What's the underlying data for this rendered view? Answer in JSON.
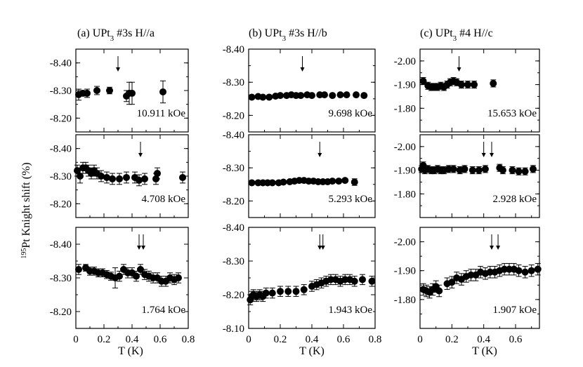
{
  "figure": {
    "ylabel_sup": "195",
    "ylabel_main": "Pt Knight shift (%)",
    "xlabel": "T (K)",
    "columns": [
      {
        "label_pre": "(a) UPt",
        "label_sub": "3",
        "label_post": " #3s H//a"
      },
      {
        "label_pre": "(b) UPt",
        "label_sub": "3",
        "label_post": " #3s H//b"
      },
      {
        "label_pre": "(c) UPt",
        "label_sub": "3",
        "label_post": " #4 H//c"
      }
    ]
  },
  "chart_data": [
    {
      "type": "scatter",
      "column": 0,
      "row": 0,
      "field_label": "10.911 kOe",
      "xlim": [
        0,
        0.8
      ],
      "ylim": [
        -8.15,
        -8.45
      ],
      "yticks": [
        "-8.40",
        "-8.30",
        "-8.20"
      ],
      "xticks": [],
      "points": [
        [
          0.02,
          -8.285,
          0.02
        ],
        [
          0.05,
          -8.29,
          0.01
        ],
        [
          0.08,
          -8.29,
          0.015
        ],
        [
          0.15,
          -8.3,
          0.015
        ],
        [
          0.24,
          -8.3,
          0.012
        ],
        [
          0.36,
          -8.28,
          0.02
        ],
        [
          0.38,
          -8.29,
          0.04
        ],
        [
          0.4,
          -8.29,
          0.04
        ],
        [
          0.62,
          -8.295,
          0.04
        ]
      ],
      "arrows": [
        0.3
      ]
    },
    {
      "type": "scatter",
      "column": 1,
      "row": 0,
      "field_label": "9.698 kOe",
      "xlim": [
        0,
        0.8
      ],
      "ylim": [
        -8.15,
        -8.4
      ],
      "yticks": [
        "-8.40",
        "-8.30",
        "-8.20"
      ],
      "xticks": [],
      "points": [
        [
          0.02,
          -8.255,
          0
        ],
        [
          0.06,
          -8.257,
          0
        ],
        [
          0.09,
          -8.255,
          0
        ],
        [
          0.13,
          -8.255,
          0
        ],
        [
          0.17,
          -8.258,
          0
        ],
        [
          0.2,
          -8.26,
          0
        ],
        [
          0.24,
          -8.26,
          0
        ],
        [
          0.27,
          -8.262,
          0
        ],
        [
          0.3,
          -8.26,
          0
        ],
        [
          0.33,
          -8.26,
          0
        ],
        [
          0.37,
          -8.262,
          0
        ],
        [
          0.4,
          -8.26,
          0
        ],
        [
          0.45,
          -8.262,
          0
        ],
        [
          0.48,
          -8.262,
          0
        ],
        [
          0.53,
          -8.26,
          0
        ],
        [
          0.58,
          -8.262,
          0
        ],
        [
          0.62,
          -8.262,
          0
        ],
        [
          0.68,
          -8.262,
          0
        ],
        [
          0.73,
          -8.26,
          0
        ]
      ],
      "arrows": [
        0.34
      ]
    },
    {
      "type": "scatter",
      "column": 2,
      "row": 0,
      "field_label": "15.653 kOe",
      "xlim": [
        0,
        0.75
      ],
      "ylim": [
        -1.7,
        -2.05
      ],
      "yticks": [
        "-2.00",
        "-1.90",
        "-1.80"
      ],
      "xticks": [],
      "points": [
        [
          0.02,
          -1.915,
          0.015
        ],
        [
          0.05,
          -1.895,
          0.015
        ],
        [
          0.07,
          -1.89,
          0.015
        ],
        [
          0.09,
          -1.89,
          0.015
        ],
        [
          0.11,
          -1.89,
          0.015
        ],
        [
          0.13,
          -1.895,
          0.015
        ],
        [
          0.15,
          -1.89,
          0.015
        ],
        [
          0.17,
          -1.9,
          0.015
        ],
        [
          0.19,
          -1.91,
          0.015
        ],
        [
          0.21,
          -1.915,
          0.015
        ],
        [
          0.23,
          -1.91,
          0.015
        ],
        [
          0.26,
          -1.9,
          0.015
        ],
        [
          0.3,
          -1.9,
          0.015
        ],
        [
          0.34,
          -1.9,
          0.015
        ],
        [
          0.46,
          -1.905,
          0.015
        ]
      ],
      "arrows": [
        0.245
      ]
    },
    {
      "type": "scatter",
      "column": 0,
      "row": 1,
      "field_label": "4.708 kOe",
      "xlim": [
        0,
        0.8
      ],
      "ylim": [
        -8.15,
        -8.45
      ],
      "yticks": [
        "-8.40",
        "-8.30",
        "-8.20"
      ],
      "xticks": [],
      "points": [
        [
          0.01,
          -8.32,
          0.02
        ],
        [
          0.03,
          -8.3,
          0.025
        ],
        [
          0.05,
          -8.33,
          0.02
        ],
        [
          0.07,
          -8.33,
          0.02
        ],
        [
          0.09,
          -8.32,
          0.02
        ],
        [
          0.11,
          -8.31,
          0.02
        ],
        [
          0.13,
          -8.32,
          0.02
        ],
        [
          0.15,
          -8.31,
          0.02
        ],
        [
          0.18,
          -8.3,
          0.02
        ],
        [
          0.22,
          -8.295,
          0.02
        ],
        [
          0.26,
          -8.29,
          0.02
        ],
        [
          0.31,
          -8.29,
          0.02
        ],
        [
          0.36,
          -8.295,
          0.02
        ],
        [
          0.42,
          -8.295,
          0.02
        ],
        [
          0.45,
          -8.285,
          0.02
        ],
        [
          0.49,
          -8.29,
          0.02
        ],
        [
          0.57,
          -8.29,
          0.02
        ],
        [
          0.58,
          -8.31,
          0.02
        ],
        [
          0.76,
          -8.295,
          0.02
        ]
      ],
      "arrows": [
        0.46
      ]
    },
    {
      "type": "scatter",
      "column": 1,
      "row": 1,
      "field_label": "5.293 kOe",
      "xlim": [
        0,
        0.8
      ],
      "ylim": [
        -8.15,
        -8.4
      ],
      "yticks": [
        "-8.40",
        "-8.30",
        "-8.20"
      ],
      "xticks": [],
      "points": [
        [
          0.02,
          -8.255,
          0
        ],
        [
          0.06,
          -8.255,
          0
        ],
        [
          0.09,
          -8.255,
          0
        ],
        [
          0.12,
          -8.255,
          0
        ],
        [
          0.15,
          -8.255,
          0
        ],
        [
          0.19,
          -8.255,
          0
        ],
        [
          0.22,
          -8.257,
          0
        ],
        [
          0.26,
          -8.258,
          0
        ],
        [
          0.29,
          -8.26,
          0
        ],
        [
          0.32,
          -8.262,
          0
        ],
        [
          0.35,
          -8.262,
          0
        ],
        [
          0.38,
          -8.26,
          0
        ],
        [
          0.41,
          -8.26,
          0
        ],
        [
          0.44,
          -8.258,
          0
        ],
        [
          0.47,
          -8.258,
          0
        ],
        [
          0.5,
          -8.258,
          0
        ],
        [
          0.53,
          -8.26,
          0
        ],
        [
          0.57,
          -8.26,
          0
        ],
        [
          0.61,
          -8.262,
          0
        ],
        [
          0.67,
          -8.257,
          0.01
        ]
      ],
      "arrows": [
        0.45
      ]
    },
    {
      "type": "scatter",
      "column": 2,
      "row": 1,
      "field_label": "2.928 kOe",
      "xlim": [
        0,
        0.75
      ],
      "ylim": [
        -1.7,
        -2.05
      ],
      "yticks": [
        "-2.00",
        "-1.90",
        "-1.80"
      ],
      "xticks": [],
      "points": [
        [
          0.01,
          -1.905,
          0.015
        ],
        [
          0.02,
          -1.92,
          0.015
        ],
        [
          0.03,
          -1.9,
          0.015
        ],
        [
          0.05,
          -1.905,
          0.015
        ],
        [
          0.07,
          -1.9,
          0.015
        ],
        [
          0.09,
          -1.9,
          0.015
        ],
        [
          0.11,
          -1.905,
          0.015
        ],
        [
          0.13,
          -1.9,
          0.015
        ],
        [
          0.15,
          -1.9,
          0.015
        ],
        [
          0.18,
          -1.905,
          0.015
        ],
        [
          0.21,
          -1.905,
          0.015
        ],
        [
          0.25,
          -1.9,
          0.015
        ],
        [
          0.28,
          -1.905,
          0.015
        ],
        [
          0.33,
          -1.9,
          0.015
        ],
        [
          0.37,
          -1.9,
          0.015
        ],
        [
          0.41,
          -1.905,
          0.015
        ],
        [
          0.5,
          -1.91,
          0.015
        ],
        [
          0.52,
          -1.9,
          0.015
        ],
        [
          0.58,
          -1.9,
          0.015
        ],
        [
          0.62,
          -1.895,
          0.015
        ],
        [
          0.66,
          -1.895,
          0.015
        ],
        [
          0.71,
          -1.905,
          0.015
        ]
      ],
      "arrows": [
        0.4,
        0.45
      ]
    },
    {
      "type": "scatter",
      "column": 0,
      "row": 2,
      "field_label": "1.764 kOe",
      "xlim": [
        0,
        0.8
      ],
      "ylim": [
        -8.15,
        -8.45
      ],
      "yticks": [
        "-8.40",
        "-8.30",
        "-8.20"
      ],
      "xticks": [
        "0",
        "0.2",
        "0.4",
        "0.6",
        "0.8"
      ],
      "points": [
        [
          0.02,
          -8.325,
          0.015
        ],
        [
          0.07,
          -8.33,
          0.01
        ],
        [
          0.1,
          -8.32,
          0.012
        ],
        [
          0.13,
          -8.32,
          0.012
        ],
        [
          0.16,
          -8.315,
          0.012
        ],
        [
          0.19,
          -8.315,
          0.012
        ],
        [
          0.22,
          -8.31,
          0.012
        ],
        [
          0.25,
          -8.305,
          0.012
        ],
        [
          0.28,
          -8.3,
          0.03
        ],
        [
          0.31,
          -8.305,
          0.015
        ],
        [
          0.34,
          -8.325,
          0.015
        ],
        [
          0.37,
          -8.315,
          0.015
        ],
        [
          0.4,
          -8.315,
          0.015
        ],
        [
          0.43,
          -8.305,
          0.015
        ],
        [
          0.46,
          -8.325,
          0.015
        ],
        [
          0.49,
          -8.31,
          0.015
        ],
        [
          0.52,
          -8.305,
          0.015
        ],
        [
          0.55,
          -8.3,
          0.015
        ],
        [
          0.58,
          -8.3,
          0.015
        ],
        [
          0.61,
          -8.29,
          0.015
        ],
        [
          0.64,
          -8.29,
          0.015
        ],
        [
          0.67,
          -8.3,
          0.015
        ],
        [
          0.7,
          -8.295,
          0.015
        ],
        [
          0.73,
          -8.3,
          0.015
        ]
      ],
      "arrows": [
        0.45,
        0.48
      ]
    },
    {
      "type": "scatter",
      "column": 1,
      "row": 2,
      "field_label": "1.943 kOe",
      "xlim": [
        0,
        0.8
      ],
      "ylim": [
        -8.1,
        -8.4
      ],
      "yticks": [
        "-8.40",
        "-8.30",
        "-8.20",
        "-8.10"
      ],
      "xticks": [
        "0",
        "0.2",
        "0.4",
        "0.6",
        "0.8"
      ],
      "points": [
        [
          0.01,
          -8.185,
          0.015
        ],
        [
          0.02,
          -8.195,
          0.015
        ],
        [
          0.03,
          -8.2,
          0.015
        ],
        [
          0.05,
          -8.195,
          0.015
        ],
        [
          0.07,
          -8.2,
          0.015
        ],
        [
          0.09,
          -8.195,
          0.015
        ],
        [
          0.11,
          -8.205,
          0.015
        ],
        [
          0.15,
          -8.205,
          0.015
        ],
        [
          0.2,
          -8.21,
          0.015
        ],
        [
          0.25,
          -8.21,
          0.015
        ],
        [
          0.3,
          -8.21,
          0.015
        ],
        [
          0.35,
          -8.215,
          0.015
        ],
        [
          0.4,
          -8.225,
          0.015
        ],
        [
          0.43,
          -8.23,
          0.015
        ],
        [
          0.46,
          -8.235,
          0.015
        ],
        [
          0.49,
          -8.24,
          0.015
        ],
        [
          0.52,
          -8.245,
          0.015
        ],
        [
          0.55,
          -8.245,
          0.015
        ],
        [
          0.58,
          -8.24,
          0.015
        ],
        [
          0.61,
          -8.245,
          0.015
        ],
        [
          0.64,
          -8.245,
          0.015
        ],
        [
          0.67,
          -8.24,
          0.015
        ],
        [
          0.72,
          -8.245,
          0.015
        ],
        [
          0.78,
          -8.24,
          0.015
        ]
      ],
      "arrows": [
        0.45,
        0.47
      ]
    },
    {
      "type": "scatter",
      "column": 2,
      "row": 2,
      "field_label": "1.907 kOe",
      "xlim": [
        0,
        0.75
      ],
      "ylim": [
        -1.7,
        -2.05
      ],
      "yticks": [
        "-2.00",
        "-1.90",
        "-1.80"
      ],
      "xticks": [
        "0",
        "0.2",
        "0.4",
        "0.6"
      ],
      "points": [
        [
          0.02,
          -1.835,
          0.02
        ],
        [
          0.04,
          -1.83,
          0.02
        ],
        [
          0.06,
          -1.825,
          0.02
        ],
        [
          0.08,
          -1.835,
          0.02
        ],
        [
          0.1,
          -1.845,
          0.02
        ],
        [
          0.12,
          -1.83,
          0.02
        ],
        [
          0.17,
          -1.855,
          0.02
        ],
        [
          0.2,
          -1.86,
          0.02
        ],
        [
          0.23,
          -1.875,
          0.02
        ],
        [
          0.26,
          -1.87,
          0.02
        ],
        [
          0.29,
          -1.88,
          0.02
        ],
        [
          0.32,
          -1.885,
          0.02
        ],
        [
          0.35,
          -1.885,
          0.02
        ],
        [
          0.38,
          -1.895,
          0.02
        ],
        [
          0.41,
          -1.89,
          0.02
        ],
        [
          0.44,
          -1.895,
          0.02
        ],
        [
          0.47,
          -1.895,
          0.02
        ],
        [
          0.5,
          -1.9,
          0.02
        ],
        [
          0.53,
          -1.905,
          0.02
        ],
        [
          0.56,
          -1.905,
          0.02
        ],
        [
          0.59,
          -1.905,
          0.02
        ],
        [
          0.62,
          -1.9,
          0.02
        ],
        [
          0.66,
          -1.895,
          0.02
        ],
        [
          0.7,
          -1.9,
          0.02
        ],
        [
          0.74,
          -1.905,
          0.02
        ]
      ],
      "arrows": [
        0.45,
        0.49
      ]
    }
  ]
}
